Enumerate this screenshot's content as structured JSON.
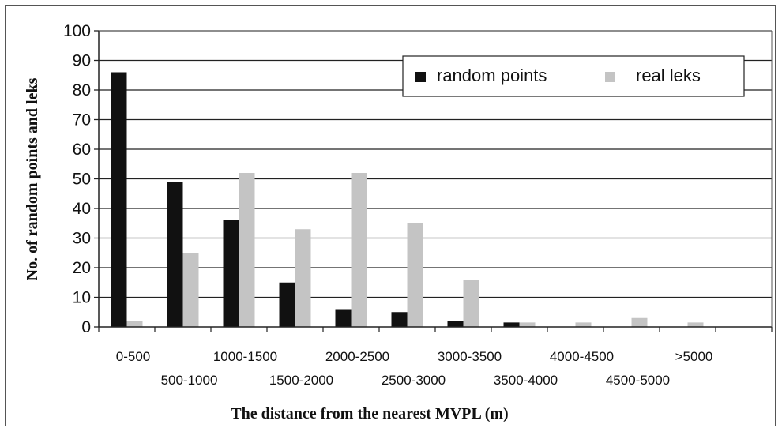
{
  "chart_data": {
    "type": "bar",
    "categories": [
      "0-500",
      "500-1000",
      "1000-1500",
      "1500-2000",
      "2000-2500",
      "2500-3000",
      "3000-3500",
      "3500-4000",
      "4000-4500",
      "4500-5000",
      ">5000"
    ],
    "series": [
      {
        "name": "random points",
        "values": [
          86,
          49,
          36,
          15,
          6,
          5,
          2,
          1.5,
          0,
          0,
          0
        ],
        "color": "#111111"
      },
      {
        "name": "real leks",
        "values": [
          2,
          25,
          52,
          33,
          52,
          35,
          16,
          1.5,
          1.5,
          3,
          1.5
        ],
        "color": "#c4c4c4"
      }
    ],
    "xlabel": "The distance from the nearest MVPL (m)",
    "ylabel": "No. of random points and leks",
    "ylim": [
      0,
      100
    ],
    "yticks": [
      0,
      10,
      20,
      30,
      40,
      50,
      60,
      70,
      80,
      90,
      100
    ],
    "grid": true,
    "legend": "top-right"
  }
}
